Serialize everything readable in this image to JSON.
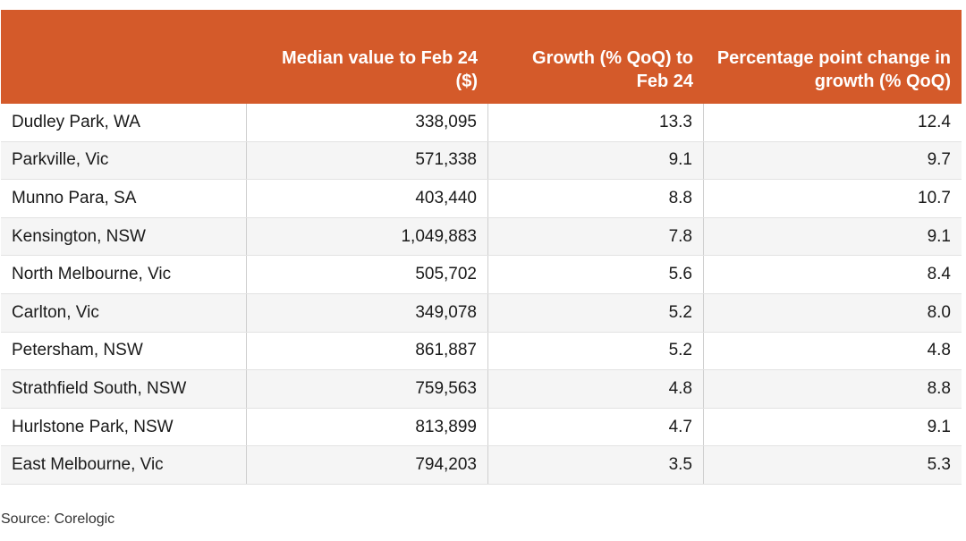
{
  "chart_data": {
    "type": "table",
    "columns": [
      "",
      "Median value to Feb 24 ($)",
      "Growth (% QoQ) to Feb 24",
      "Percentage point change in growth (% QoQ)"
    ],
    "rows": [
      [
        "Dudley Park, WA",
        "338,095",
        "13.3",
        "12.4"
      ],
      [
        "Parkville, Vic",
        "571,338",
        "9.1",
        "9.7"
      ],
      [
        "Munno Para, SA",
        "403,440",
        "8.8",
        "10.7"
      ],
      [
        "Kensington, NSW",
        "1,049,883",
        "7.8",
        "9.1"
      ],
      [
        "North Melbourne, Vic",
        "505,702",
        "5.6",
        "8.4"
      ],
      [
        "Carlton, Vic",
        "349,078",
        "5.2",
        "8.0"
      ],
      [
        "Petersham, NSW",
        "861,887",
        "5.2",
        "4.8"
      ],
      [
        "Strathfield South, NSW",
        "759,563",
        "4.8",
        "8.8"
      ],
      [
        "Hurlstone Park, NSW",
        "813,899",
        "4.7",
        "9.1"
      ],
      [
        "East Melbourne, Vic",
        "794,203",
        "3.5",
        "5.3"
      ]
    ],
    "source": "Source: Corelogic"
  },
  "colors": {
    "header_bg": "#d45a2a",
    "header_text": "#ffffff",
    "stripe": "#f5f5f5"
  }
}
